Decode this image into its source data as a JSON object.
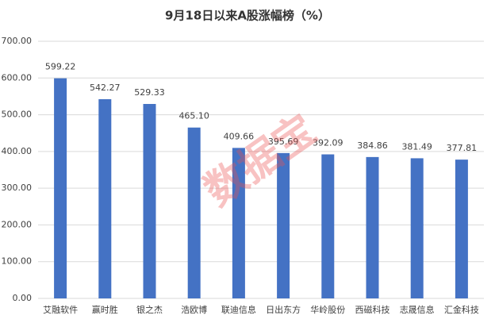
{
  "chart_data": {
    "type": "bar",
    "title": "9月18日以来A股涨幅榜（%）",
    "categories": [
      "艾融软件",
      "赢时胜",
      "银之杰",
      "浩欧博",
      "联迪信息",
      "日出东方",
      "华岭股份",
      "西磁科技",
      "志晟信息",
      "汇金科技"
    ],
    "values": [
      599.22,
      542.27,
      529.33,
      465.1,
      409.66,
      395.69,
      392.09,
      384.86,
      381.49,
      377.81
    ],
    "value_labels": [
      "599.22",
      "542.27",
      "529.33",
      "465.10",
      "409.66",
      "395.69",
      "392.09",
      "384.86",
      "381.49",
      "377.81"
    ],
    "color": "#4472c4",
    "ylim": [
      0,
      700
    ],
    "yticks": [
      {
        "value": 0,
        "label": "0.00"
      },
      {
        "value": 100,
        "label": "100.00"
      },
      {
        "value": 200,
        "label": "200.00"
      },
      {
        "value": 300,
        "label": "300.00"
      },
      {
        "value": 400,
        "label": "400.00"
      },
      {
        "value": 500,
        "label": "500.00"
      },
      {
        "value": 600,
        "label": "600.00"
      },
      {
        "value": 700,
        "label": "700.00"
      }
    ],
    "grid": true,
    "watermark": "数据宝"
  }
}
